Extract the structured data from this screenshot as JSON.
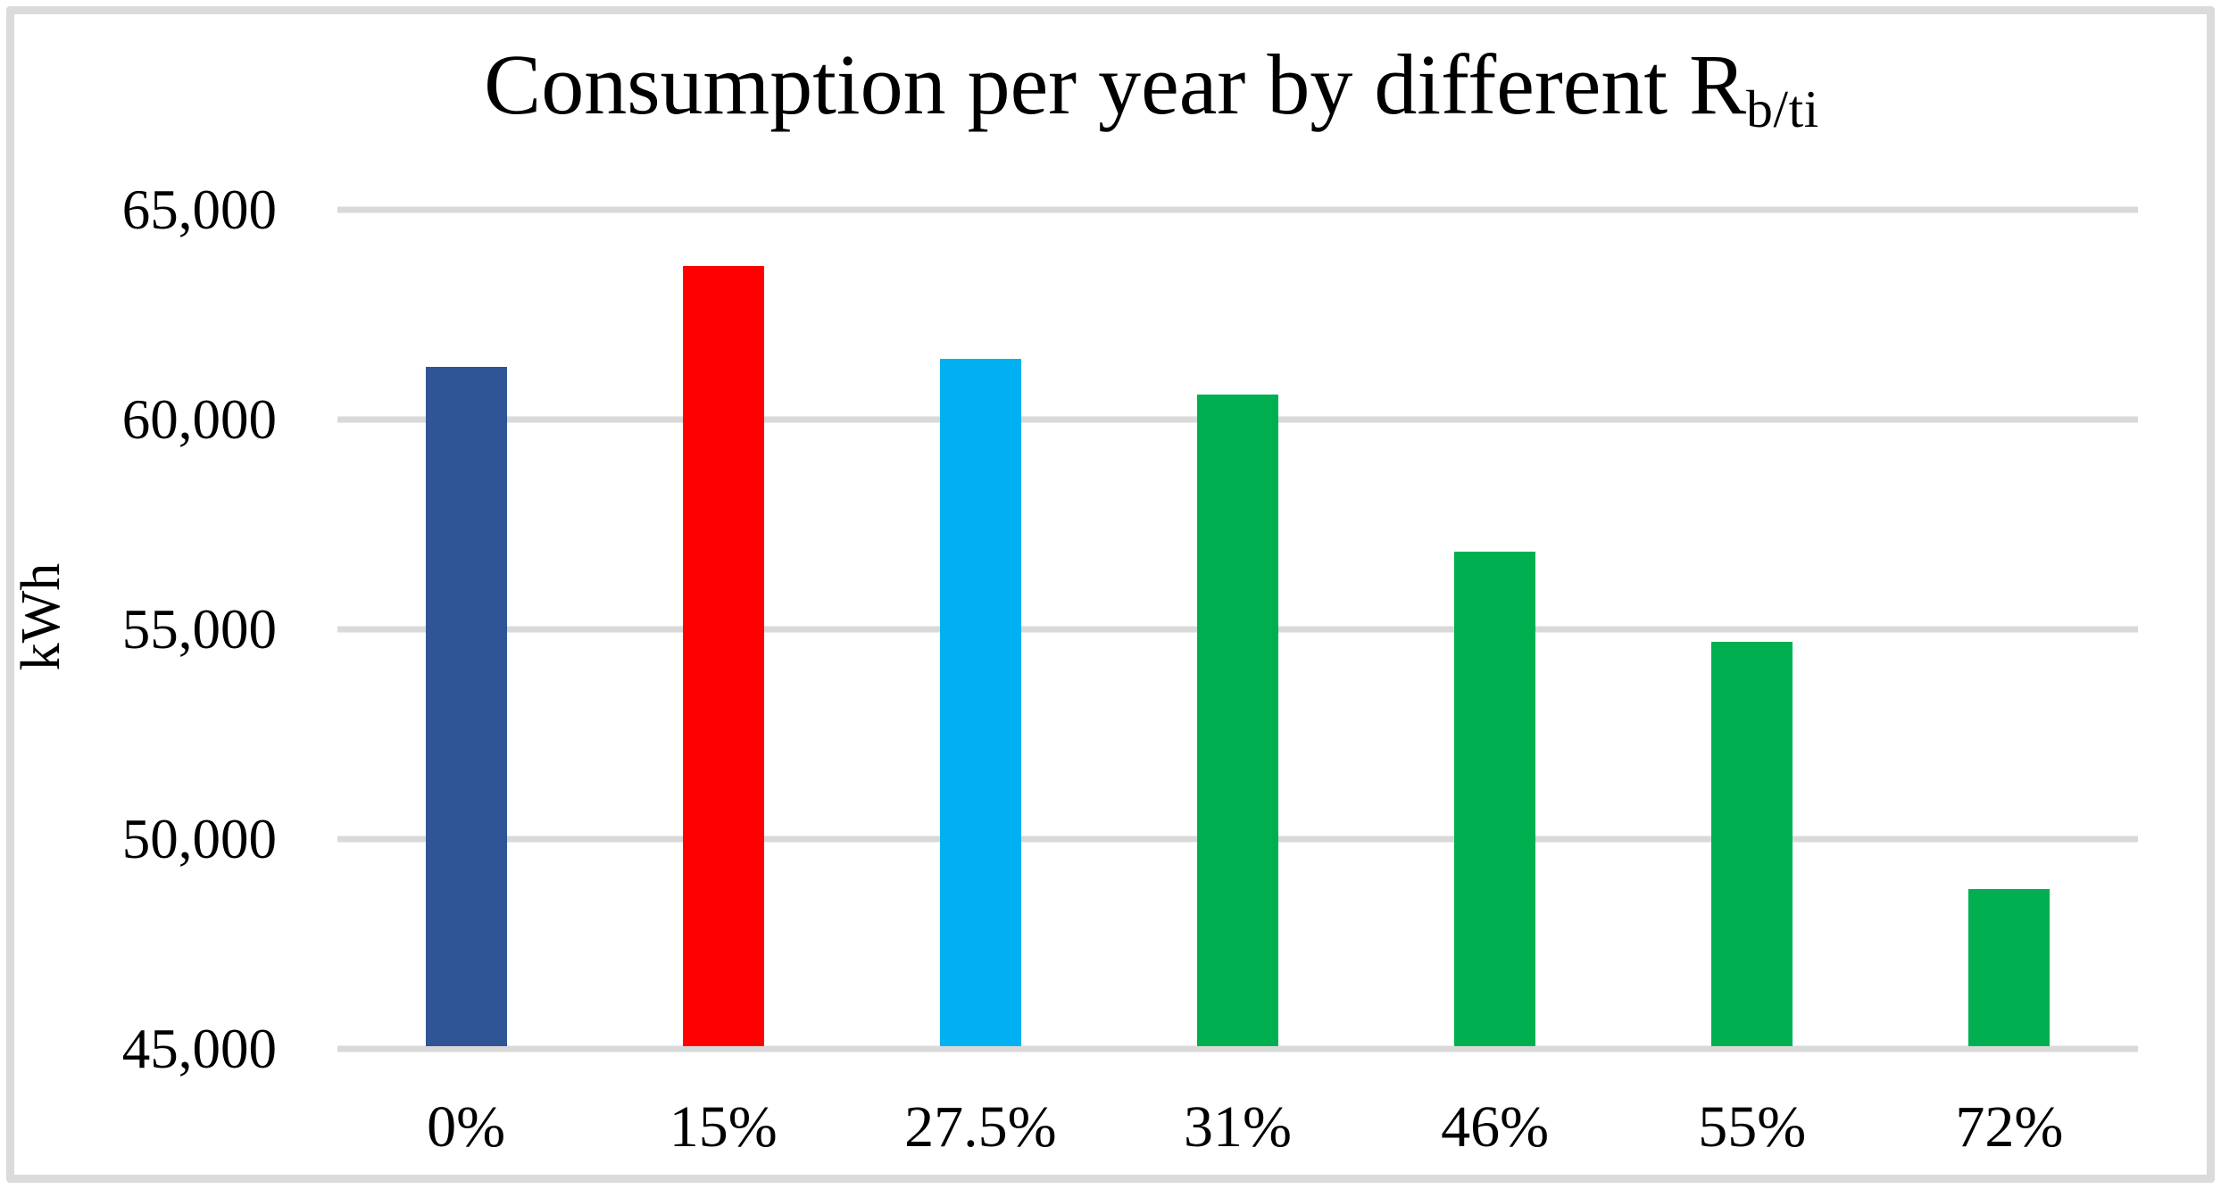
{
  "figure": {
    "background": "#FFFFFF",
    "border_color": "#DBDBDB"
  },
  "chart_data": {
    "type": "bar",
    "title_main": "Consumption per year by different R",
    "title_subscript": "b/ti",
    "ylabel": "kWh",
    "xlabel": "",
    "categories": [
      "0%",
      "15%",
      "27.5%",
      "31%",
      "46%",
      "55%",
      "72%"
    ],
    "values": [
      61250,
      63650,
      61450,
      60600,
      56850,
      54700,
      48800
    ],
    "bar_colors": [
      "#2F5597",
      "#FF0000",
      "#00B0F0",
      "#00B050",
      "#00B050",
      "#00B050",
      "#00B050"
    ],
    "ylim": [
      45000,
      65000
    ],
    "ytick_values": [
      45000,
      50000,
      55000,
      60000,
      65000
    ],
    "ytick_labels": [
      "45,000",
      "50,000",
      "55,000",
      "60,000",
      "65,000"
    ],
    "gridline_color": "#D9D9D9",
    "grid": "horizontal",
    "legend": "none",
    "text_color": "#000000"
  }
}
